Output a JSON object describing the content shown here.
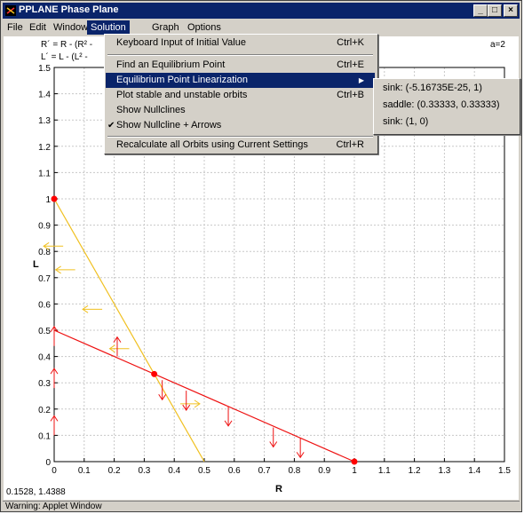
{
  "window": {
    "title": "PPLANE Phase Plane"
  },
  "menu": [
    "File",
    "Edit",
    "Window",
    "Solution",
    "Graph",
    "Options"
  ],
  "equations": {
    "r_eq": "R´ = R - (R² -",
    "l_eq": "L´ = L - (L² -",
    "param": "a=2"
  },
  "solution_menu": [
    {
      "label": "Keyboard Input of Initial Value",
      "shortcut": "Ctrl+K"
    },
    {
      "label": "Find an Equilibrium Point",
      "shortcut": "Ctrl+E"
    },
    {
      "label": "Equilibrium Point Linearization",
      "shortcut": ""
    },
    {
      "label": "Plot stable and unstable orbits",
      "shortcut": "Ctrl+B"
    },
    {
      "label": "Show Nullclines",
      "shortcut": ""
    },
    {
      "label": "Show Nullcline + Arrows",
      "shortcut": ""
    },
    {
      "label": "Recalculate all Orbits using Current Settings",
      "shortcut": "Ctrl+R"
    }
  ],
  "linearization_submenu": [
    "sink: (-5.16735E-25, 1)",
    "saddle: (0.33333, 0.33333)",
    "sink: (1, 0)"
  ],
  "cursor_readout": "0.1528, 1.4388",
  "status": "Warning: Applet Window",
  "colors": {
    "titlebar": "#0a246a",
    "red_nullcline": "#ee1111",
    "yellow_nullcline": "#f0c020",
    "equilibrium": "#ff0000"
  },
  "chart_data": {
    "type": "line",
    "xlabel": "R",
    "ylabel": "L",
    "xlim": [
      0,
      1.5
    ],
    "ylim": [
      0,
      1.5
    ],
    "xticks": [
      "0",
      "0.1",
      "0.2",
      "0.3",
      "0.4",
      "0.5",
      "0.6",
      "0.7",
      "0.8",
      "0.9",
      "1",
      "1.1",
      "1.2",
      "1.3",
      "1.4",
      "1.5"
    ],
    "yticks": [
      "0",
      "0.1",
      "0.2",
      "0.3",
      "0.4",
      "0.5",
      "0.6",
      "0.7",
      "0.8",
      "0.9",
      "1",
      "1.1",
      "1.2",
      "1.3",
      "1.4",
      "1.5"
    ],
    "grid": true,
    "series": [
      {
        "color": "#ee1111",
        "points": [
          [
            0,
            0.5
          ],
          [
            1,
            0
          ]
        ]
      },
      {
        "color": "#f0c020",
        "points": [
          [
            0,
            1
          ],
          [
            0.5,
            0
          ]
        ]
      }
    ],
    "equilibria": [
      [
        0,
        1
      ],
      [
        0.33333,
        0.33333
      ],
      [
        1,
        0
      ]
    ],
    "arrows": [
      {
        "at": [
          0.03,
          0.82
        ],
        "dir": "left",
        "color": "#f0c020"
      },
      {
        "at": [
          0.07,
          0.73
        ],
        "dir": "left",
        "color": "#f0c020"
      },
      {
        "at": [
          0.16,
          0.58
        ],
        "dir": "left",
        "color": "#f0c020"
      },
      {
        "at": [
          0.25,
          0.43
        ],
        "dir": "left",
        "color": "#f0c020"
      },
      {
        "at": [
          0.42,
          0.22
        ],
        "dir": "right",
        "color": "#f0c020"
      },
      {
        "at": [
          0.21,
          0.4
        ],
        "dir": "up",
        "color": "#ee1111"
      },
      {
        "at": [
          0.36,
          0.31
        ],
        "dir": "down",
        "color": "#ee1111"
      },
      {
        "at": [
          0.44,
          0.27
        ],
        "dir": "down",
        "color": "#ee1111"
      },
      {
        "at": [
          0.58,
          0.21
        ],
        "dir": "down",
        "color": "#ee1111"
      },
      {
        "at": [
          0.73,
          0.13
        ],
        "dir": "down",
        "color": "#ee1111"
      },
      {
        "at": [
          0.82,
          0.09
        ],
        "dir": "down",
        "color": "#ee1111"
      },
      {
        "at": [
          0,
          0.44
        ],
        "dir": "up",
        "color": "#ee1111"
      },
      {
        "at": [
          0,
          0.28
        ],
        "dir": "up",
        "color": "#ee1111"
      },
      {
        "at": [
          0,
          0.1
        ],
        "dir": "up",
        "color": "#ee1111"
      }
    ]
  }
}
